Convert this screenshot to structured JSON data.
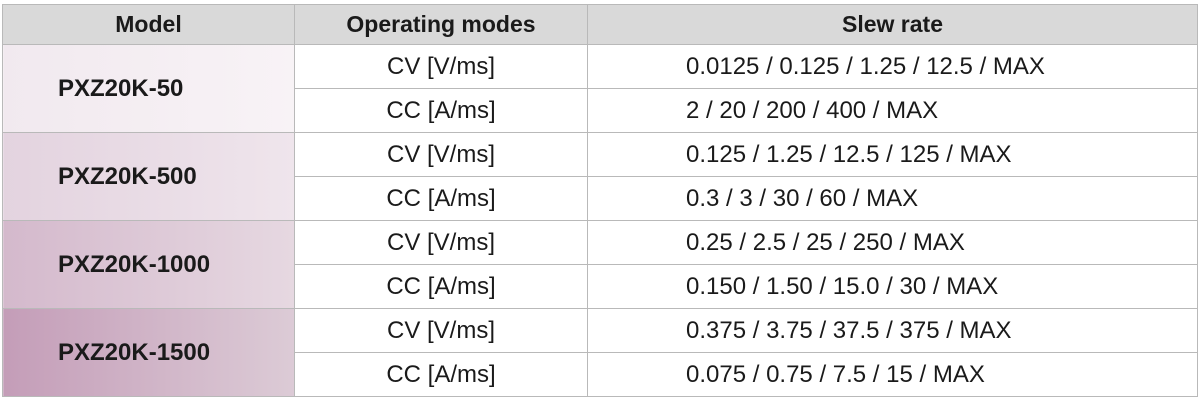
{
  "header": {
    "model": "Model",
    "mode": "Operating modes",
    "slew": "Slew rate"
  },
  "rows": [
    {
      "model": "PXZ20K-50",
      "modes": [
        {
          "mode": "CV [V/ms]",
          "slew": "0.0125 / 0.125 / 1.25 / 12.5 / MAX"
        },
        {
          "mode": "CC [A/ms]",
          "slew": "2 / 20 / 200 / 400 / MAX"
        }
      ]
    },
    {
      "model": "PXZ20K-500",
      "modes": [
        {
          "mode": "CV [V/ms]",
          "slew": "0.125 / 1.25 / 12.5 / 125 / MAX"
        },
        {
          "mode": "CC [A/ms]",
          "slew": "0.3 / 3 / 30 / 60 / MAX"
        }
      ]
    },
    {
      "model": "PXZ20K-1000",
      "modes": [
        {
          "mode": "CV [V/ms]",
          "slew": "0.25 / 2.5 / 25 / 250 / MAX"
        },
        {
          "mode": "CC [A/ms]",
          "slew": "0.150 / 1.50 / 15.0 / 30 / MAX"
        }
      ]
    },
    {
      "model": "PXZ20K-1500",
      "modes": [
        {
          "mode": "CV [V/ms]",
          "slew": "0.375 / 3.75 / 37.5 / 375 / MAX"
        },
        {
          "mode": "CC [A/ms]",
          "slew": "0.075 / 0.75 / 7.5 / 15 / MAX"
        }
      ]
    }
  ]
}
